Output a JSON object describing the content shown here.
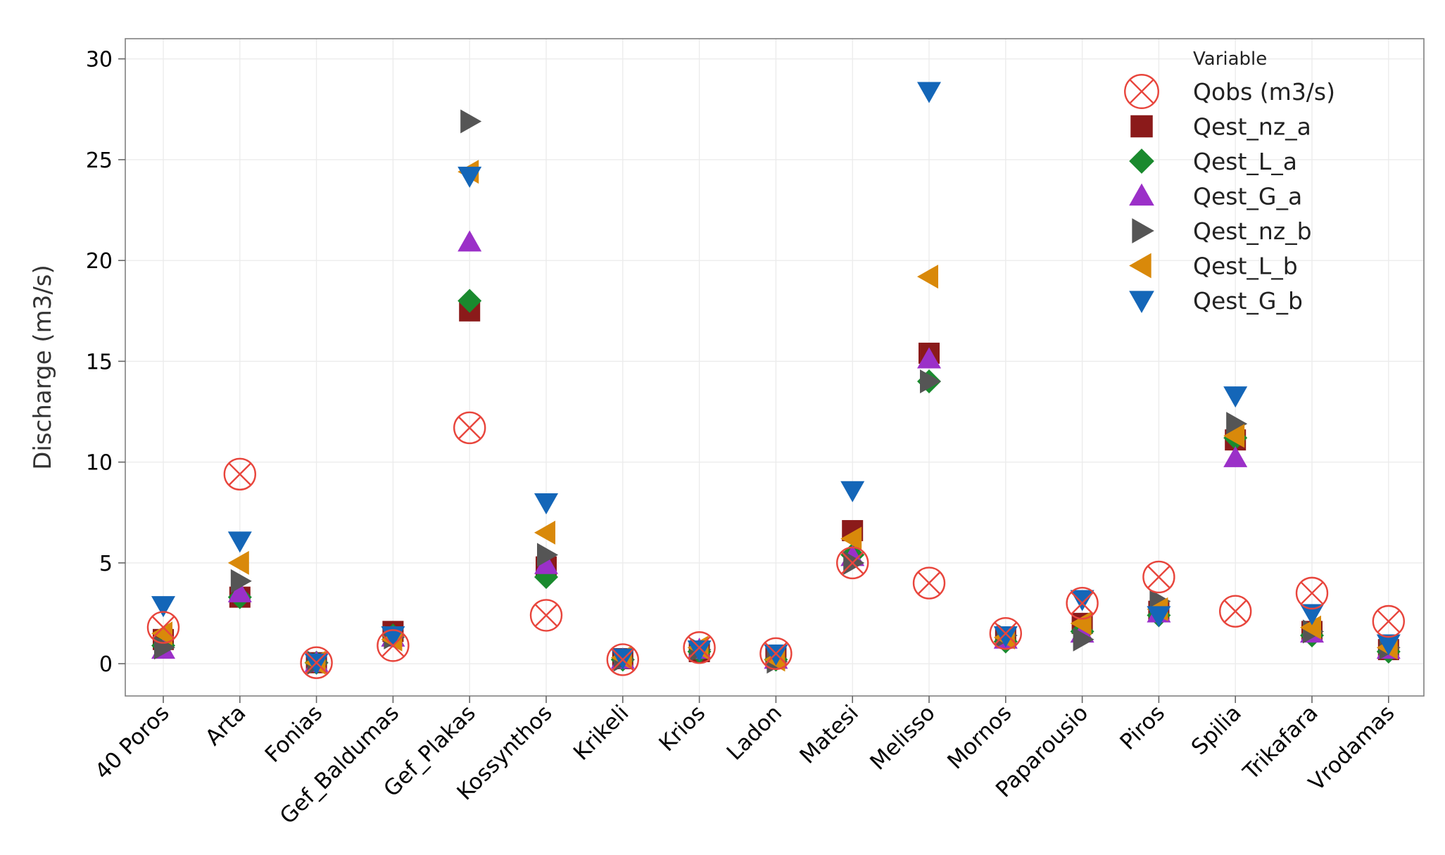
{
  "chart_data": {
    "type": "scatter",
    "ylabel": "Discharge (m3/s)",
    "ylim": [
      -1.6,
      31
    ],
    "yticks": [
      0,
      5,
      10,
      15,
      20,
      25,
      30
    ],
    "grid": true,
    "legend": {
      "title": "Variable",
      "placement": "top-right"
    },
    "categories": [
      "40 Poros",
      "Arta",
      "Fonias",
      "Gef_Baldumas",
      "Gef_Plakas",
      "Kossynthos",
      "Krikeli",
      "Krios",
      "Ladon",
      "Matesi",
      "Melisso",
      "Mornos",
      "Paparousio",
      "Piros",
      "Spilia",
      "Trikafara",
      "Vrodamas"
    ],
    "series": [
      {
        "name": "Qobs (m3/s)",
        "marker": "circle-x",
        "color": "#e8453c",
        "values": [
          1.8,
          9.4,
          0.05,
          0.9,
          11.7,
          2.4,
          0.2,
          0.8,
          0.5,
          5.0,
          4.0,
          1.5,
          3.0,
          4.3,
          2.6,
          3.5,
          2.1
        ]
      },
      {
        "name": "Qest_nz_a",
        "marker": "square",
        "color": "#8b1a1a",
        "values": [
          1.2,
          3.3,
          0.05,
          1.6,
          17.5,
          4.8,
          0.25,
          0.6,
          0.3,
          6.6,
          15.4,
          1.3,
          2.0,
          2.6,
          11.1,
          1.6,
          0.7
        ]
      },
      {
        "name": "Qest_L_a",
        "marker": "diamond",
        "color": "#1a8a2e",
        "values": [
          0.9,
          3.3,
          0.05,
          1.4,
          18.0,
          4.3,
          0.2,
          0.6,
          0.2,
          5.4,
          14.0,
          1.1,
          1.6,
          2.4,
          11.2,
          1.4,
          0.6
        ]
      },
      {
        "name": "Qest_G_a",
        "marker": "triangle-up",
        "color": "#9b30c8",
        "values": [
          0.7,
          3.5,
          0.05,
          1.3,
          20.9,
          4.9,
          0.2,
          0.7,
          0.2,
          5.3,
          15.1,
          1.2,
          1.5,
          2.5,
          10.2,
          1.5,
          0.7
        ]
      },
      {
        "name": "Qest_nz_b",
        "marker": "triangle-right",
        "color": "#555555",
        "values": [
          0.8,
          4.1,
          0.05,
          1.3,
          26.9,
          5.4,
          0.2,
          0.7,
          0.1,
          5.0,
          14.0,
          1.4,
          1.2,
          3.1,
          11.9,
          1.6,
          0.8
        ]
      },
      {
        "name": "Qest_L_b",
        "marker": "triangle-left",
        "color": "#d9890a",
        "values": [
          1.5,
          5.0,
          0.05,
          1.2,
          24.4,
          6.5,
          0.3,
          0.8,
          0.2,
          6.2,
          19.2,
          1.3,
          2.0,
          2.7,
          11.3,
          1.8,
          0.8
        ]
      },
      {
        "name": "Qest_G_b",
        "marker": "triangle-down",
        "color": "#1466b8",
        "values": [
          2.9,
          6.1,
          0.05,
          1.4,
          24.2,
          8.0,
          0.3,
          0.7,
          0.5,
          8.6,
          28.4,
          1.4,
          3.2,
          2.4,
          13.3,
          2.5,
          1.0
        ]
      }
    ]
  }
}
